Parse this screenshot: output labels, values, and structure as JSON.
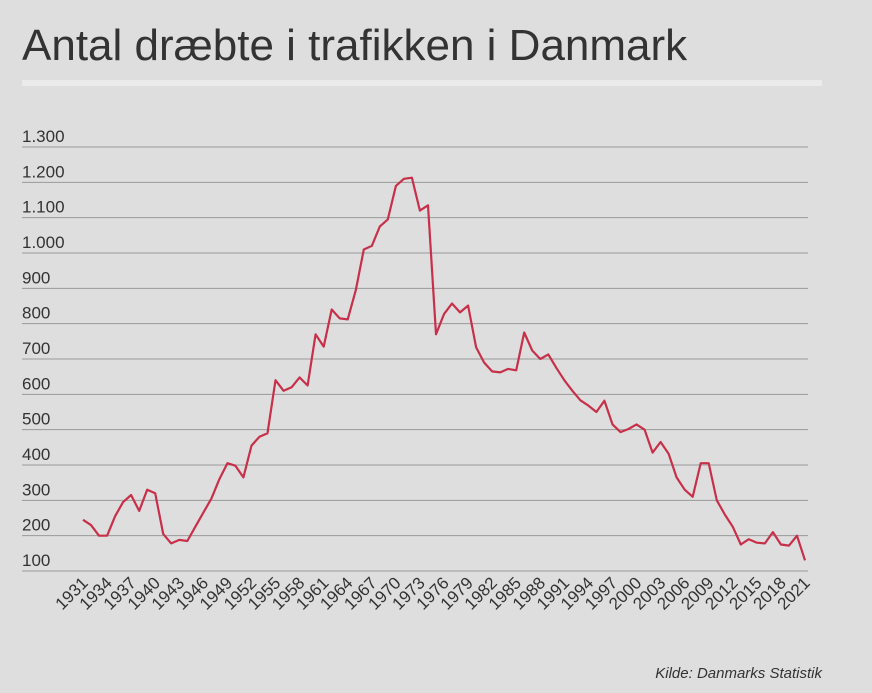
{
  "chart_data": {
    "type": "line",
    "title": "Antal dræbte i trafikken i Danmark",
    "source": "Kilde: Danmarks Statistik",
    "color": "#c8304a",
    "grid": true,
    "x": [
      1931,
      1932,
      1933,
      1934,
      1935,
      1936,
      1937,
      1938,
      1939,
      1940,
      1941,
      1942,
      1943,
      1944,
      1945,
      1946,
      1947,
      1948,
      1949,
      1950,
      1951,
      1952,
      1953,
      1954,
      1955,
      1956,
      1957,
      1958,
      1959,
      1960,
      1961,
      1962,
      1963,
      1964,
      1965,
      1966,
      1967,
      1968,
      1969,
      1970,
      1971,
      1972,
      1973,
      1974,
      1975,
      1976,
      1977,
      1978,
      1979,
      1980,
      1981,
      1982,
      1983,
      1984,
      1985,
      1986,
      1987,
      1988,
      1989,
      1990,
      1991,
      1992,
      1993,
      1994,
      1995,
      1996,
      1997,
      1998,
      1999,
      2000,
      2001,
      2002,
      2003,
      2004,
      2005,
      2006,
      2007,
      2008,
      2009,
      2010,
      2011,
      2012,
      2013,
      2014,
      2015,
      2016,
      2017,
      2018,
      2019,
      2020,
      2021
    ],
    "values": [
      245,
      230,
      200,
      200,
      255,
      295,
      315,
      270,
      330,
      320,
      205,
      178,
      188,
      185,
      225,
      265,
      305,
      360,
      405,
      398,
      365,
      455,
      480,
      490,
      640,
      610,
      620,
      648,
      625,
      770,
      735,
      840,
      815,
      812,
      895,
      1010,
      1020,
      1075,
      1095,
      1190,
      1210,
      1213,
      1120,
      1135,
      770,
      827,
      857,
      832,
      851,
      733,
      690,
      665,
      662,
      672,
      668,
      775,
      724,
      700,
      713,
      675,
      640,
      610,
      583,
      568,
      550,
      582,
      515,
      493,
      502,
      515,
      500,
      435,
      465,
      432,
      365,
      330,
      310,
      405,
      405,
      300,
      260,
      225,
      175,
      190,
      180,
      178,
      210,
      175,
      172,
      200,
      130
    ],
    "xlim": [
      1931,
      2021
    ],
    "xticks": [
      1931,
      1934,
      1937,
      1940,
      1943,
      1946,
      1949,
      1952,
      1955,
      1958,
      1961,
      1964,
      1967,
      1970,
      1973,
      1976,
      1979,
      1982,
      1985,
      1988,
      1991,
      1994,
      1997,
      2000,
      2003,
      2006,
      2009,
      2012,
      2015,
      2018,
      2021
    ],
    "ylim": [
      100,
      1300
    ],
    "yticks": [
      100,
      200,
      300,
      400,
      500,
      600,
      700,
      800,
      900,
      {
        "value": 1000,
        "label": "1.000"
      },
      {
        "value": 1100,
        "label": "1.100"
      },
      {
        "value": 1200,
        "label": "1.200"
      },
      {
        "value": 1300,
        "label": "1.300"
      }
    ]
  }
}
